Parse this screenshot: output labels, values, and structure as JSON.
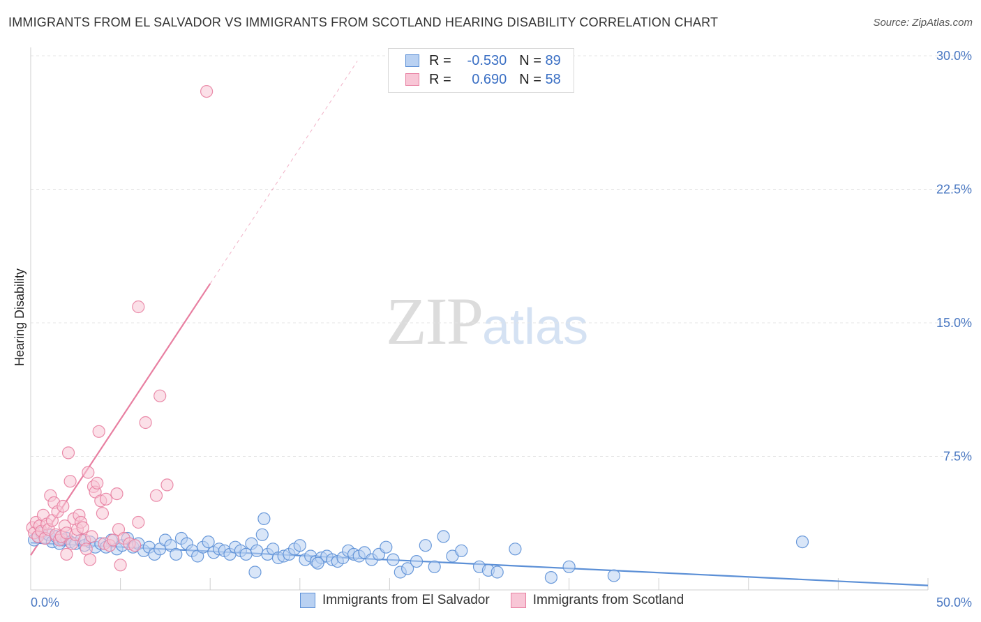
{
  "title": "IMMIGRANTS FROM EL SALVADOR VS IMMIGRANTS FROM SCOTLAND HEARING DISABILITY CORRELATION CHART",
  "source": "Source: ZipAtlas.com",
  "watermark": {
    "zip": "ZIP",
    "atlas": "atlas"
  },
  "legend": {
    "rows": [
      {
        "r_label": "R =",
        "r_value": "-0.530",
        "n_label": "N =",
        "n_value": "89",
        "color": "#5b8fd6",
        "fill": "#b9d1f2"
      },
      {
        "r_label": "R =",
        "r_value": "0.690",
        "n_label": "N =",
        "n_value": "58",
        "color": "#e87fa1",
        "fill": "#f8c6d6"
      }
    ]
  },
  "bottom_legend": [
    "Immigrants from El Salvador",
    "Immigrants from Scotland"
  ],
  "chart_data": {
    "type": "scatter",
    "xlabel": "",
    "ylabel": "Hearing Disability",
    "xlim": [
      0,
      50
    ],
    "ylim": [
      0,
      30
    ],
    "x_tick_labels": [
      "0.0%",
      "50.0%"
    ],
    "y_ticks": [
      7.5,
      15.0,
      22.5,
      30.0
    ],
    "y_tick_labels": [
      "7.5%",
      "15.0%",
      "22.5%",
      "30.0%"
    ],
    "grid": true,
    "legend_position": "top-center",
    "series": [
      {
        "name": "Immigrants from El Salvador",
        "color": "#5b8fd6",
        "fill": "#b9d1f2",
        "points": [
          [
            0.2,
            2.8
          ],
          [
            0.4,
            3.0
          ],
          [
            0.6,
            3.2
          ],
          [
            0.8,
            2.9
          ],
          [
            1.0,
            3.1
          ],
          [
            1.2,
            2.7
          ],
          [
            1.4,
            3.0
          ],
          [
            1.6,
            2.6
          ],
          [
            1.8,
            2.8
          ],
          [
            2.0,
            2.9
          ],
          [
            2.2,
            2.7
          ],
          [
            2.5,
            2.6
          ],
          [
            2.8,
            2.8
          ],
          [
            3.0,
            2.5
          ],
          [
            3.3,
            2.7
          ],
          [
            3.6,
            2.4
          ],
          [
            3.9,
            2.6
          ],
          [
            4.2,
            2.4
          ],
          [
            4.5,
            2.8
          ],
          [
            4.8,
            2.3
          ],
          [
            5.1,
            2.5
          ],
          [
            5.4,
            2.9
          ],
          [
            5.7,
            2.4
          ],
          [
            6.0,
            2.6
          ],
          [
            6.3,
            2.2
          ],
          [
            6.6,
            2.4
          ],
          [
            6.9,
            2.0
          ],
          [
            7.2,
            2.3
          ],
          [
            7.5,
            2.8
          ],
          [
            7.8,
            2.5
          ],
          [
            8.1,
            2.0
          ],
          [
            8.4,
            2.9
          ],
          [
            8.7,
            2.6
          ],
          [
            9.0,
            2.2
          ],
          [
            9.3,
            1.9
          ],
          [
            9.6,
            2.4
          ],
          [
            9.9,
            2.7
          ],
          [
            10.2,
            2.1
          ],
          [
            10.5,
            2.3
          ],
          [
            10.8,
            2.2
          ],
          [
            11.1,
            2.0
          ],
          [
            11.4,
            2.4
          ],
          [
            11.7,
            2.2
          ],
          [
            12.0,
            2.0
          ],
          [
            12.3,
            2.6
          ],
          [
            12.6,
            2.2
          ],
          [
            12.9,
            3.1
          ],
          [
            13.2,
            2.0
          ],
          [
            13.5,
            2.3
          ],
          [
            13.8,
            1.8
          ],
          [
            14.1,
            1.9
          ],
          [
            14.4,
            2.0
          ],
          [
            14.7,
            2.3
          ],
          [
            15.0,
            2.5
          ],
          [
            15.3,
            1.7
          ],
          [
            15.6,
            1.9
          ],
          [
            15.9,
            1.6
          ],
          [
            16.2,
            1.8
          ],
          [
            16.5,
            1.9
          ],
          [
            16.8,
            1.7
          ],
          [
            17.1,
            1.6
          ],
          [
            17.4,
            1.8
          ],
          [
            17.7,
            2.2
          ],
          [
            18.0,
            2.0
          ],
          [
            18.3,
            1.9
          ],
          [
            18.6,
            2.1
          ],
          [
            19.0,
            1.7
          ],
          [
            19.4,
            2.0
          ],
          [
            19.8,
            2.4
          ],
          [
            20.2,
            1.7
          ],
          [
            20.6,
            1.0
          ],
          [
            21.0,
            1.2
          ],
          [
            21.5,
            1.6
          ],
          [
            22.0,
            2.5
          ],
          [
            22.5,
            1.3
          ],
          [
            23.0,
            3.0
          ],
          [
            23.5,
            1.9
          ],
          [
            24.0,
            2.2
          ],
          [
            25.0,
            1.3
          ],
          [
            25.5,
            1.1
          ],
          [
            26.0,
            1.0
          ],
          [
            27.0,
            2.3
          ],
          [
            29.0,
            0.7
          ],
          [
            30.0,
            1.3
          ],
          [
            32.5,
            0.8
          ],
          [
            43.0,
            2.7
          ],
          [
            12.5,
            1.0
          ],
          [
            13.0,
            4.0
          ],
          [
            16.0,
            1.5
          ]
        ]
      },
      {
        "name": "Immigrants from Scotland",
        "color": "#e87fa1",
        "fill": "#f8c6d6",
        "points": [
          [
            0.1,
            3.5
          ],
          [
            0.2,
            3.2
          ],
          [
            0.3,
            3.8
          ],
          [
            0.4,
            3.0
          ],
          [
            0.5,
            3.6
          ],
          [
            0.6,
            3.3
          ],
          [
            0.7,
            4.2
          ],
          [
            0.8,
            2.9
          ],
          [
            0.9,
            3.7
          ],
          [
            1.0,
            3.4
          ],
          [
            1.1,
            5.3
          ],
          [
            1.2,
            3.9
          ],
          [
            1.3,
            4.9
          ],
          [
            1.4,
            3.1
          ],
          [
            1.5,
            4.4
          ],
          [
            1.6,
            2.8
          ],
          [
            1.7,
            3.0
          ],
          [
            1.8,
            4.7
          ],
          [
            1.9,
            3.6
          ],
          [
            2.0,
            3.2
          ],
          [
            2.1,
            7.7
          ],
          [
            2.2,
            6.1
          ],
          [
            2.3,
            2.6
          ],
          [
            2.4,
            4.0
          ],
          [
            2.5,
            3.1
          ],
          [
            2.6,
            3.4
          ],
          [
            2.7,
            4.2
          ],
          [
            2.8,
            3.8
          ],
          [
            2.9,
            3.5
          ],
          [
            3.0,
            2.8
          ],
          [
            3.1,
            2.3
          ],
          [
            3.2,
            6.6
          ],
          [
            3.3,
            1.7
          ],
          [
            3.4,
            3.0
          ],
          [
            3.5,
            5.8
          ],
          [
            3.6,
            5.5
          ],
          [
            3.7,
            6.0
          ],
          [
            3.8,
            8.9
          ],
          [
            3.9,
            5.0
          ],
          [
            4.0,
            4.3
          ],
          [
            4.1,
            2.6
          ],
          [
            4.2,
            5.1
          ],
          [
            4.4,
            2.5
          ],
          [
            4.6,
            2.8
          ],
          [
            4.8,
            5.4
          ],
          [
            4.9,
            3.4
          ],
          [
            5.0,
            1.4
          ],
          [
            5.2,
            2.9
          ],
          [
            5.5,
            2.6
          ],
          [
            5.8,
            2.5
          ],
          [
            6.0,
            3.8
          ],
          [
            6.4,
            9.4
          ],
          [
            6.0,
            15.9
          ],
          [
            7.0,
            5.3
          ],
          [
            7.2,
            10.9
          ],
          [
            7.6,
            5.9
          ],
          [
            9.8,
            28.0
          ],
          [
            2.0,
            2.0
          ]
        ]
      }
    ],
    "trendlines": [
      {
        "series": "Immigrants from El Salvador",
        "x": [
          0,
          50
        ],
        "y": [
          2.65,
          0.25
        ],
        "style": "solid"
      },
      {
        "series": "Immigrants from Scotland",
        "x": [
          0,
          10
        ],
        "y": [
          1.95,
          17.2
        ],
        "style": "solid"
      },
      {
        "series": "Immigrants from Scotland",
        "x": [
          10,
          18.2
        ],
        "y": [
          17.2,
          29.7
        ],
        "style": "dashed"
      }
    ]
  }
}
